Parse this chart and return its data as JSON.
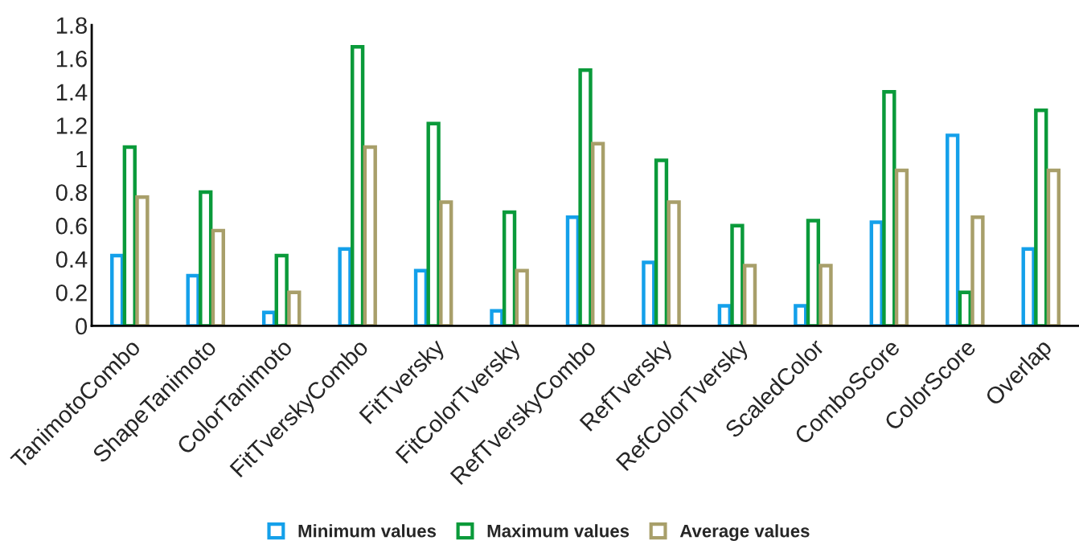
{
  "chart_data": {
    "type": "bar",
    "categories": [
      "TanimotoCombo",
      "ShapeTanimoto",
      "ColorTanimoto",
      "FitTverskyCombo",
      "FitTversky",
      "FitColorTversky",
      "RefTverskyCombo",
      "RefTversky",
      "RefColorTversky",
      "ScaledColor",
      "ComboScore",
      "ColorScore",
      "Overlap"
    ],
    "series": [
      {
        "name": "Minimum values",
        "color": "#14a0ea",
        "values": [
          0.42,
          0.3,
          0.08,
          0.46,
          0.33,
          0.09,
          0.65,
          0.38,
          0.12,
          0.12,
          0.62,
          1.14,
          0.46
        ]
      },
      {
        "name": "Maximum values",
        "color": "#0a9a3a",
        "values": [
          1.07,
          0.8,
          0.42,
          1.67,
          1.21,
          0.68,
          1.53,
          0.99,
          0.6,
          0.63,
          1.4,
          0.2,
          1.29
        ]
      },
      {
        "name": "Average values",
        "color": "#a89f6a",
        "values": [
          0.77,
          0.57,
          0.2,
          1.07,
          0.74,
          0.33,
          1.09,
          0.74,
          0.36,
          0.36,
          0.93,
          0.65,
          0.93
        ]
      }
    ],
    "ylim": [
      0,
      1.8
    ],
    "yticks": [
      0,
      0.2,
      0.4,
      0.6,
      0.8,
      1,
      1.2,
      1.4,
      1.6,
      1.8
    ],
    "grid": false,
    "legend": "bottom"
  }
}
